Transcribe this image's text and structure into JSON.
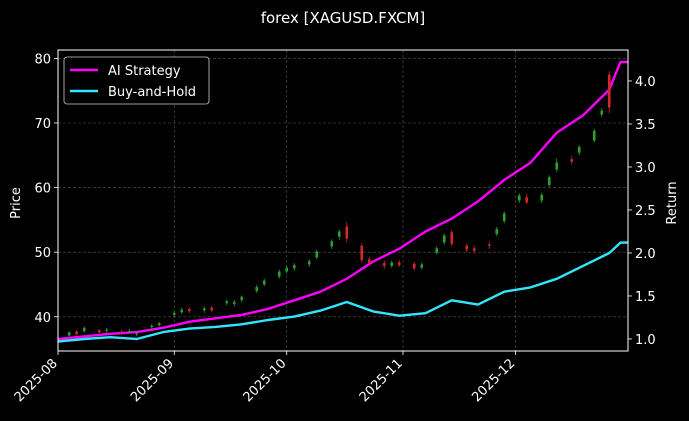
{
  "chart_data": {
    "type": "candlestick+line",
    "title": "forex [XAGUSD.FXCM]",
    "ylabel_left": "Price",
    "ylabel_right": "Return",
    "ylim_left": [
      34.7,
      81.3
    ],
    "ylim_right": [
      0.86,
      4.36
    ],
    "yticks_left": [
      40,
      50,
      60,
      70,
      80
    ],
    "yticks_right": [
      1.0,
      1.5,
      2.0,
      2.5,
      3.0,
      3.5,
      4.0
    ],
    "xticks": [
      "2025-08",
      "2025-09",
      "2025-10",
      "2025-11",
      "2025-12"
    ],
    "x_start": "2025-08-01",
    "x_end": "2025-12-31",
    "grid": true,
    "legend_position": "upper-left",
    "colors": {
      "background": "#000000",
      "up_candle": "#2ca02c",
      "down_candle": "#d62728",
      "ai_strategy": "#ff00ff",
      "buy_and_hold": "#33e6ff",
      "grid": "#555555",
      "axes": "#ffffff"
    },
    "series": [
      {
        "name": "AI Strategy",
        "axis": "right",
        "points": [
          [
            "2025-08-01",
            1.0
          ],
          [
            "2025-08-08",
            1.03
          ],
          [
            "2025-08-15",
            1.06
          ],
          [
            "2025-08-22",
            1.08
          ],
          [
            "2025-08-29",
            1.13
          ],
          [
            "2025-09-05",
            1.2
          ],
          [
            "2025-09-12",
            1.24
          ],
          [
            "2025-09-19",
            1.28
          ],
          [
            "2025-09-26",
            1.35
          ],
          [
            "2025-10-03",
            1.45
          ],
          [
            "2025-10-10",
            1.55
          ],
          [
            "2025-10-17",
            1.7
          ],
          [
            "2025-10-24",
            1.9
          ],
          [
            "2025-10-31",
            2.05
          ],
          [
            "2025-11-07",
            2.25
          ],
          [
            "2025-11-14",
            2.4
          ],
          [
            "2025-11-21",
            2.6
          ],
          [
            "2025-11-28",
            2.85
          ],
          [
            "2025-12-05",
            3.05
          ],
          [
            "2025-12-12",
            3.4
          ],
          [
            "2025-12-19",
            3.6
          ],
          [
            "2025-12-26",
            3.9
          ],
          [
            "2025-12-29",
            4.22
          ],
          [
            "2025-12-31",
            4.22
          ]
        ]
      },
      {
        "name": "Buy-and-Hold",
        "axis": "right",
        "points": [
          [
            "2025-08-01",
            0.97
          ],
          [
            "2025-08-08",
            1.0
          ],
          [
            "2025-08-15",
            1.02
          ],
          [
            "2025-08-22",
            1.0
          ],
          [
            "2025-08-29",
            1.08
          ],
          [
            "2025-09-05",
            1.12
          ],
          [
            "2025-09-12",
            1.14
          ],
          [
            "2025-09-19",
            1.17
          ],
          [
            "2025-09-26",
            1.22
          ],
          [
            "2025-10-03",
            1.26
          ],
          [
            "2025-10-10",
            1.33
          ],
          [
            "2025-10-17",
            1.43
          ],
          [
            "2025-10-24",
            1.32
          ],
          [
            "2025-10-31",
            1.27
          ],
          [
            "2025-11-07",
            1.3
          ],
          [
            "2025-11-14",
            1.45
          ],
          [
            "2025-11-21",
            1.4
          ],
          [
            "2025-11-28",
            1.55
          ],
          [
            "2025-12-05",
            1.6
          ],
          [
            "2025-12-12",
            1.7
          ],
          [
            "2025-12-19",
            1.85
          ],
          [
            "2025-12-26",
            2.0
          ],
          [
            "2025-12-29",
            2.12
          ],
          [
            "2025-12-31",
            2.12
          ]
        ]
      }
    ],
    "candles": [
      [
        "2025-08-04",
        37.1,
        37.6,
        36.9,
        37.7
      ],
      [
        "2025-08-06",
        37.7,
        37.3,
        37.1,
        38.0
      ],
      [
        "2025-08-08",
        37.8,
        38.3,
        37.6,
        38.5
      ],
      [
        "2025-08-12",
        37.9,
        37.6,
        37.4,
        38.1
      ],
      [
        "2025-08-14",
        37.9,
        38.0,
        37.5,
        38.3
      ],
      [
        "2025-08-18",
        37.7,
        37.6,
        37.2,
        38.0
      ],
      [
        "2025-08-20",
        37.6,
        37.8,
        37.4,
        38.1
      ],
      [
        "2025-08-22",
        37.3,
        37.4,
        37.0,
        37.8
      ],
      [
        "2025-08-26",
        38.4,
        38.6,
        38.0,
        38.9
      ],
      [
        "2025-08-28",
        38.7,
        39.0,
        38.5,
        39.2
      ],
      [
        "2025-09-01",
        40.3,
        40.6,
        39.9,
        40.9
      ],
      [
        "2025-09-03",
        40.7,
        41.1,
        40.4,
        41.4
      ],
      [
        "2025-09-05",
        41.2,
        40.9,
        40.6,
        41.5
      ],
      [
        "2025-09-09",
        41.0,
        41.3,
        40.6,
        41.6
      ],
      [
        "2025-09-11",
        41.4,
        41.0,
        40.7,
        41.7
      ],
      [
        "2025-09-15",
        42.1,
        42.4,
        41.8,
        42.7
      ],
      [
        "2025-09-17",
        42.0,
        42.3,
        41.6,
        42.6
      ],
      [
        "2025-09-19",
        42.6,
        43.1,
        42.2,
        43.3
      ],
      [
        "2025-09-23",
        44.0,
        44.6,
        43.7,
        44.9
      ],
      [
        "2025-09-25",
        45.0,
        45.6,
        44.7,
        45.9
      ],
      [
        "2025-09-29",
        46.2,
        47.0,
        45.9,
        47.3
      ],
      [
        "2025-10-01",
        47.0,
        47.6,
        46.7,
        47.9
      ],
      [
        "2025-10-03",
        47.5,
        48.0,
        47.1,
        48.3
      ],
      [
        "2025-10-07",
        48.1,
        48.6,
        47.7,
        48.9
      ],
      [
        "2025-10-09",
        49.2,
        50.1,
        48.9,
        50.4
      ],
      [
        "2025-10-13",
        50.9,
        51.7,
        50.5,
        52.0
      ],
      [
        "2025-10-15",
        52.4,
        53.2,
        51.9,
        53.5
      ],
      [
        "2025-10-17",
        54.0,
        52.1,
        51.5,
        54.6
      ],
      [
        "2025-10-21",
        51.0,
        48.8,
        48.5,
        51.4
      ],
      [
        "2025-10-23",
        48.9,
        48.3,
        47.9,
        49.3
      ],
      [
        "2025-10-27",
        48.3,
        47.9,
        47.4,
        48.7
      ],
      [
        "2025-10-29",
        47.9,
        48.4,
        47.6,
        48.7
      ],
      [
        "2025-10-31",
        48.4,
        48.0,
        47.7,
        48.8
      ],
      [
        "2025-11-04",
        48.2,
        47.5,
        47.2,
        48.5
      ],
      [
        "2025-11-06",
        47.6,
        48.1,
        47.3,
        48.4
      ],
      [
        "2025-11-10",
        49.9,
        50.6,
        49.6,
        50.9
      ],
      [
        "2025-11-12",
        51.5,
        52.6,
        51.2,
        52.9
      ],
      [
        "2025-11-14",
        53.1,
        51.3,
        50.9,
        53.4
      ],
      [
        "2025-11-18",
        51.0,
        50.4,
        50.0,
        51.3
      ],
      [
        "2025-11-20",
        50.6,
        50.2,
        49.8,
        51.0
      ],
      [
        "2025-11-24",
        51.2,
        51.0,
        50.5,
        51.6
      ],
      [
        "2025-11-26",
        52.8,
        53.6,
        52.5,
        53.9
      ],
      [
        "2025-11-28",
        54.8,
        56.0,
        54.5,
        56.3
      ],
      [
        "2025-12-02",
        58.0,
        58.8,
        57.6,
        59.1
      ],
      [
        "2025-12-04",
        58.5,
        57.7,
        57.4,
        59.0
      ],
      [
        "2025-12-08",
        58.0,
        58.9,
        57.6,
        59.2
      ],
      [
        "2025-12-10",
        60.4,
        61.6,
        60.1,
        61.9
      ],
      [
        "2025-12-12",
        62.8,
        63.9,
        62.4,
        64.5
      ],
      [
        "2025-12-16",
        64.4,
        64.0,
        63.6,
        64.9
      ],
      [
        "2025-12-18",
        65.4,
        66.3,
        65.0,
        66.6
      ],
      [
        "2025-12-22",
        67.3,
        68.8,
        67.0,
        69.1
      ],
      [
        "2025-12-24",
        71.3,
        71.9,
        70.9,
        72.3
      ],
      [
        "2025-12-26",
        77.5,
        72.4,
        71.5,
        78.0
      ]
    ]
  }
}
